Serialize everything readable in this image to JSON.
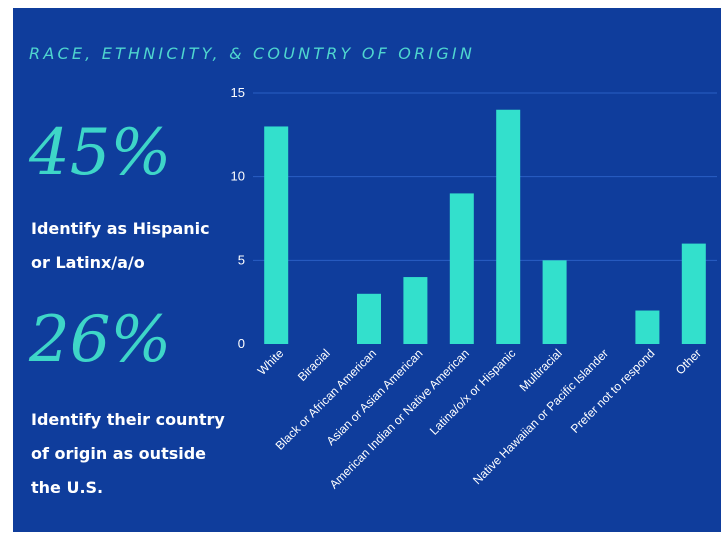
{
  "title": "RACE, ETHNICITY, & COUNTRY OF ORIGIN",
  "stats": [
    {
      "value": "45%",
      "line1": "Identify as Hispanic",
      "line2": "or Latinx/a/o"
    },
    {
      "value": "26%",
      "line1": "Identify their country",
      "line2": "of origin as outside",
      "line3": "the U.S."
    }
  ],
  "colors": {
    "background": "#0f3d9c",
    "bar": "#33e0cc",
    "title": "#4fd6cf",
    "stat_number": "#3ed6c8",
    "gridline": "#2a5fc4"
  },
  "chart_data": {
    "type": "bar",
    "title": "",
    "xlabel": "",
    "ylabel": "",
    "categories": [
      "White",
      "Biracial",
      "Black or African American",
      "Asian or Asian American",
      "American Indian or Native American",
      "Latina/o/x or Hispanic",
      "Multiracial",
      "Native Hawaiian or Pacific Islander",
      "Prefer not to respond",
      "Other"
    ],
    "values": [
      13,
      0,
      3,
      4,
      9,
      14,
      5,
      0,
      2,
      6
    ],
    "ylim": [
      0,
      15
    ],
    "yticks": [
      0,
      5,
      10,
      15
    ],
    "grid": true
  }
}
